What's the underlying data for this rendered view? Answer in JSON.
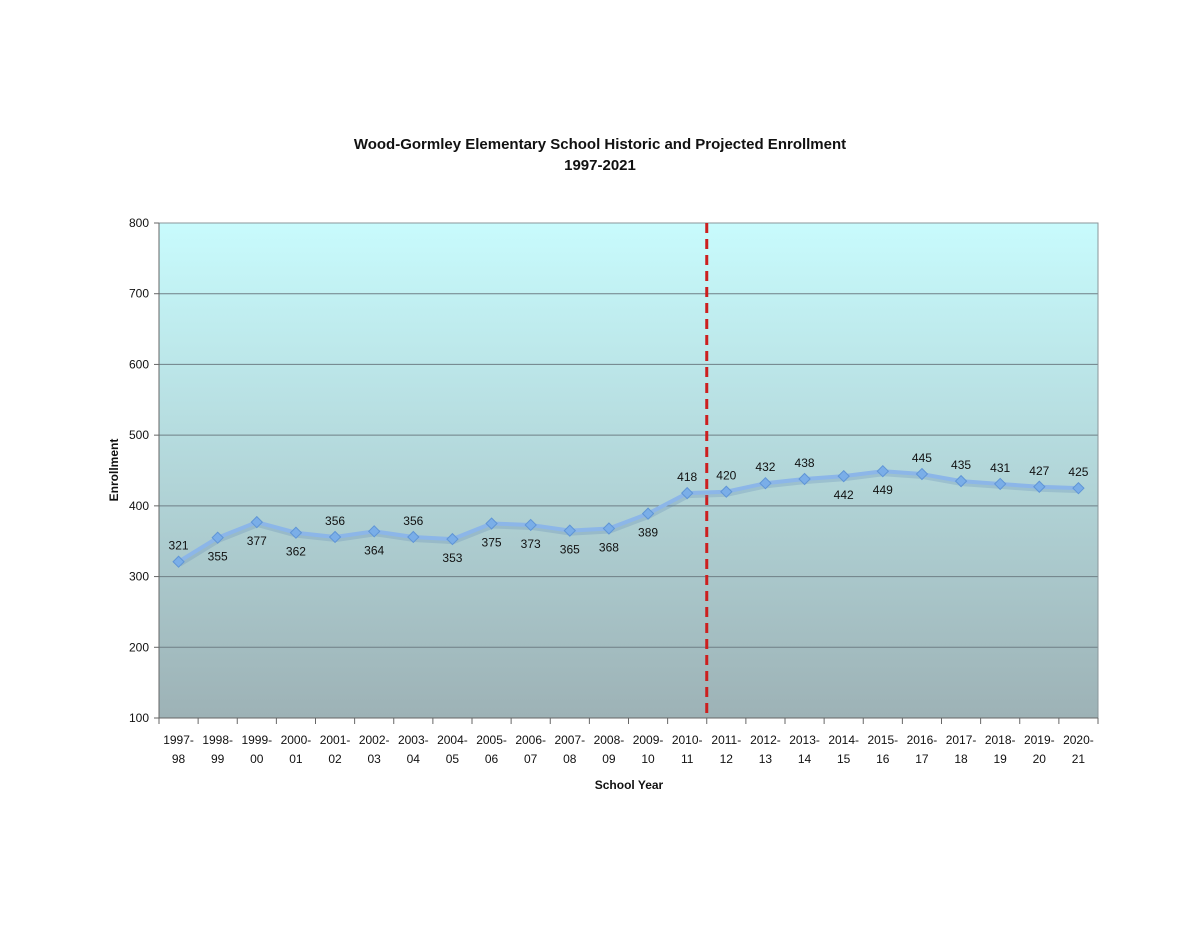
{
  "chart_data": {
    "type": "line",
    "title": "Wood-Gormley Elementary School Historic and Projected Enrollment",
    "subtitle": "1997-2021",
    "xlabel": "School Year",
    "ylabel": "Enrollment",
    "ylim": [
      100,
      800
    ],
    "yticks": [
      100,
      200,
      300,
      400,
      500,
      600,
      700,
      800
    ],
    "grid": true,
    "legend": "none",
    "categories": [
      [
        "1997-",
        "98"
      ],
      [
        "1998-",
        "99"
      ],
      [
        "1999-",
        "00"
      ],
      [
        "2000-",
        "01"
      ],
      [
        "2001-",
        "02"
      ],
      [
        "2002-",
        "03"
      ],
      [
        "2003-",
        "04"
      ],
      [
        "2004-",
        "05"
      ],
      [
        "2005-",
        "06"
      ],
      [
        "2006-",
        "07"
      ],
      [
        "2007-",
        "08"
      ],
      [
        "2008-",
        "09"
      ],
      [
        "2009-",
        "10"
      ],
      [
        "2010-",
        "11"
      ],
      [
        "2011-",
        "12"
      ],
      [
        "2012-",
        "13"
      ],
      [
        "2013-",
        "14"
      ],
      [
        "2014-",
        "15"
      ],
      [
        "2015-",
        "16"
      ],
      [
        "2016-",
        "17"
      ],
      [
        "2017-",
        "18"
      ],
      [
        "2018-",
        "19"
      ],
      [
        "2019-",
        "20"
      ],
      [
        "2020-",
        "21"
      ]
    ],
    "series": [
      {
        "values": [
          321,
          355,
          377,
          362,
          356,
          364,
          356,
          353,
          375,
          373,
          365,
          368,
          389,
          418,
          420,
          432,
          438,
          442,
          449,
          445,
          435,
          431,
          427,
          425
        ],
        "label_positions": [
          "above",
          "below",
          "below",
          "below",
          "above",
          "below",
          "above",
          "below",
          "below",
          "below",
          "below",
          "below",
          "below",
          "above",
          "above",
          "above",
          "above",
          "below",
          "below",
          "above",
          "above",
          "above",
          "above",
          "above"
        ]
      }
    ],
    "divider_after_category": "2010-11",
    "colors": {
      "series_line": "#8cb6e8",
      "series_marker": "#7aaee8",
      "divider": "#cc1f1f",
      "plot_top": "#c8fbfd",
      "plot_bottom": "#9db2b6",
      "gridline": "#6f7f86"
    }
  }
}
